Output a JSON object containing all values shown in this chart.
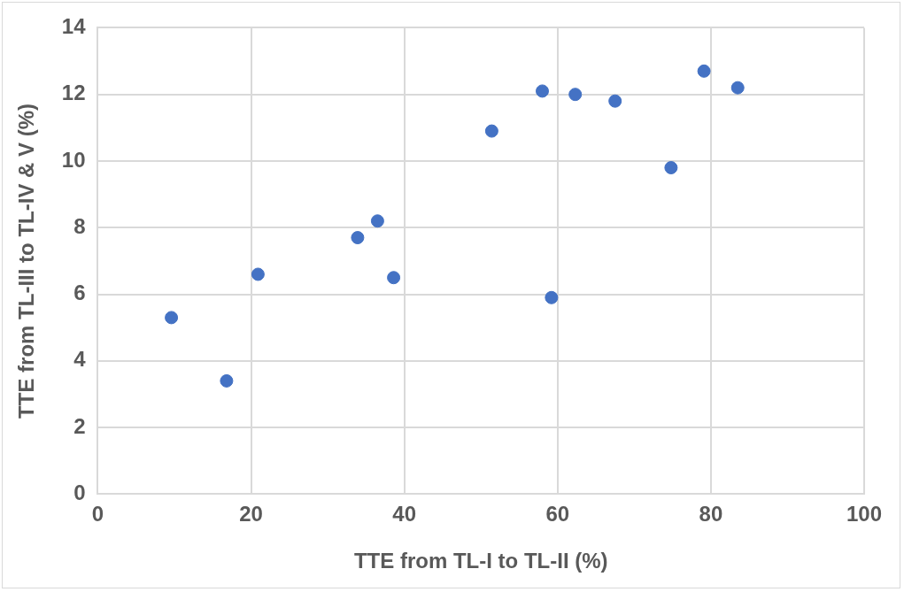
{
  "chart_data": {
    "type": "scatter",
    "xlabel": "TTE from TL-I to TL-II (%)",
    "ylabel": "TTE from TL-III to TL-IV & V (%)",
    "x": [
      9.6,
      16.8,
      20.9,
      33.9,
      36.5,
      38.6,
      51.4,
      58.0,
      59.2,
      62.3,
      67.5,
      74.8,
      79.1,
      83.5
    ],
    "values": [
      5.3,
      3.4,
      6.6,
      7.7,
      8.2,
      6.5,
      10.9,
      12.1,
      5.9,
      12.0,
      11.8,
      9.8,
      12.7,
      12.2
    ],
    "color": "#4472c4",
    "marker": "circle",
    "grid": true,
    "xlim": [
      0,
      100
    ],
    "xticks": [
      0,
      20,
      40,
      60,
      80,
      100
    ],
    "ylim": [
      0,
      14
    ],
    "yticks": [
      0,
      2,
      4,
      6,
      8,
      10,
      12,
      14
    ]
  }
}
